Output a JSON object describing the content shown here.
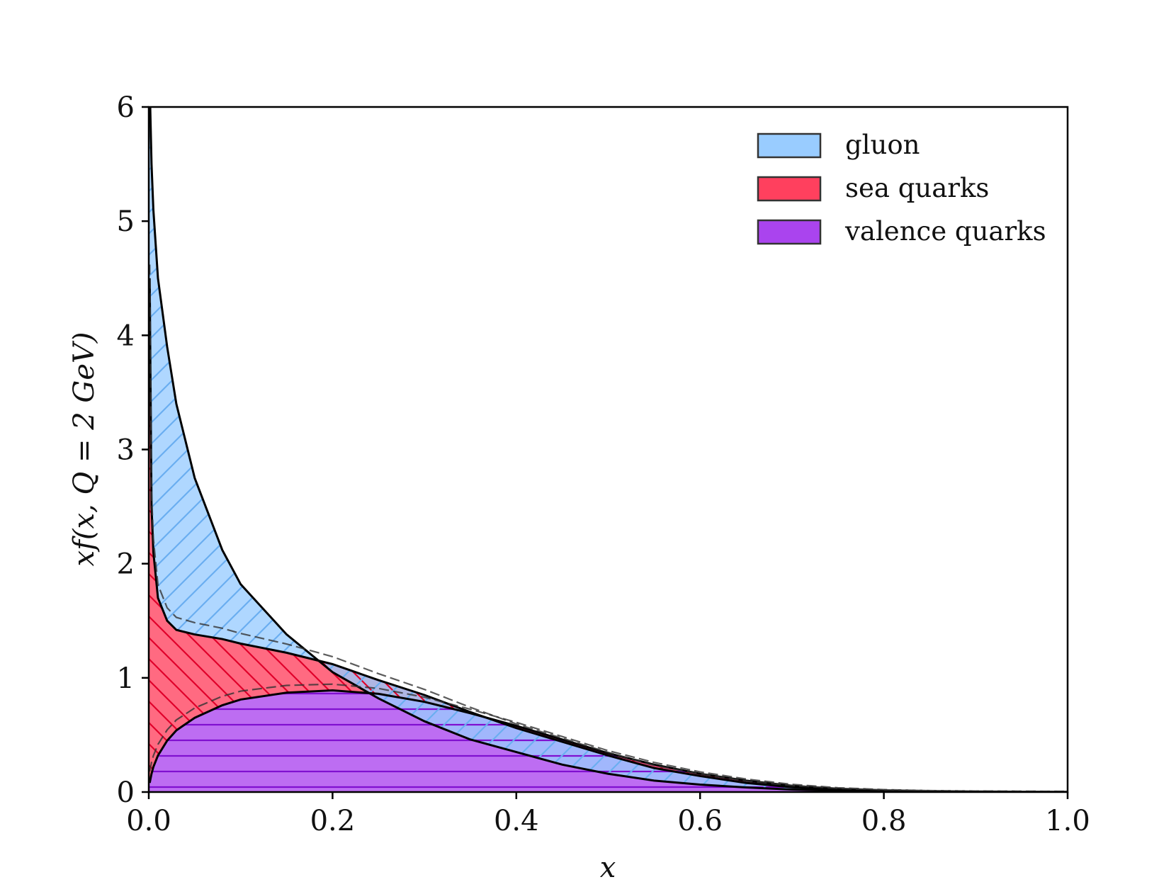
{
  "chart_data": {
    "type": "area",
    "title": "",
    "xlabel": "x",
    "ylabel": "xf(x, Q = 2 GeV)",
    "xlim": [
      0.0,
      1.0
    ],
    "ylim": [
      0,
      6
    ],
    "x_ticks": [
      "0.0",
      "0.2",
      "0.4",
      "0.6",
      "0.8",
      "1.0"
    ],
    "y_ticks": [
      "0",
      "1",
      "2",
      "3",
      "4",
      "5",
      "6"
    ],
    "grid": false,
    "legend_position": "top-right",
    "x": [
      0.001,
      0.003,
      0.005,
      0.01,
      0.02,
      0.03,
      0.05,
      0.08,
      0.1,
      0.15,
      0.2,
      0.25,
      0.3,
      0.35,
      0.4,
      0.45,
      0.5,
      0.55,
      0.6,
      0.65,
      0.7,
      0.75,
      0.8,
      0.85,
      0.9,
      0.95,
      1.0
    ],
    "series": [
      {
        "name": "gluon",
        "color": "#99ccff",
        "hatch_color": "#6aaef0",
        "hatch": "/",
        "lower_index": 1,
        "values": [
          6.2,
          5.5,
          5.1,
          4.5,
          3.9,
          3.4,
          2.75,
          2.12,
          1.82,
          1.38,
          1.05,
          0.82,
          0.62,
          0.46,
          0.35,
          0.24,
          0.16,
          0.1,
          0.065,
          0.04,
          0.022,
          0.011,
          0.005,
          0.002,
          0.0007,
          0.0001,
          0.0
        ]
      },
      {
        "name": "sea quarks",
        "color": "#ff405e",
        "hatch_color": "#e0002a",
        "hatch": "\\",
        "lower_index": 2,
        "values": [
          4.5,
          2.5,
          2.1,
          1.7,
          1.5,
          1.42,
          1.38,
          1.34,
          1.3,
          1.22,
          1.12,
          0.98,
          0.85,
          0.7,
          0.56,
          0.44,
          0.32,
          0.21,
          0.14,
          0.08,
          0.042,
          0.02,
          0.008,
          0.003,
          0.001,
          0.0002,
          0.0
        ]
      },
      {
        "name": "valence quarks",
        "color": "#aa44ee",
        "hatch_color": "#8010d0",
        "hatch": "-",
        "lower_index": -1,
        "values": [
          0.08,
          0.16,
          0.22,
          0.32,
          0.45,
          0.54,
          0.65,
          0.76,
          0.81,
          0.87,
          0.89,
          0.86,
          0.79,
          0.69,
          0.58,
          0.46,
          0.34,
          0.24,
          0.16,
          0.1,
          0.055,
          0.027,
          0.012,
          0.004,
          0.0013,
          0.0002,
          0.0
        ]
      }
    ]
  }
}
